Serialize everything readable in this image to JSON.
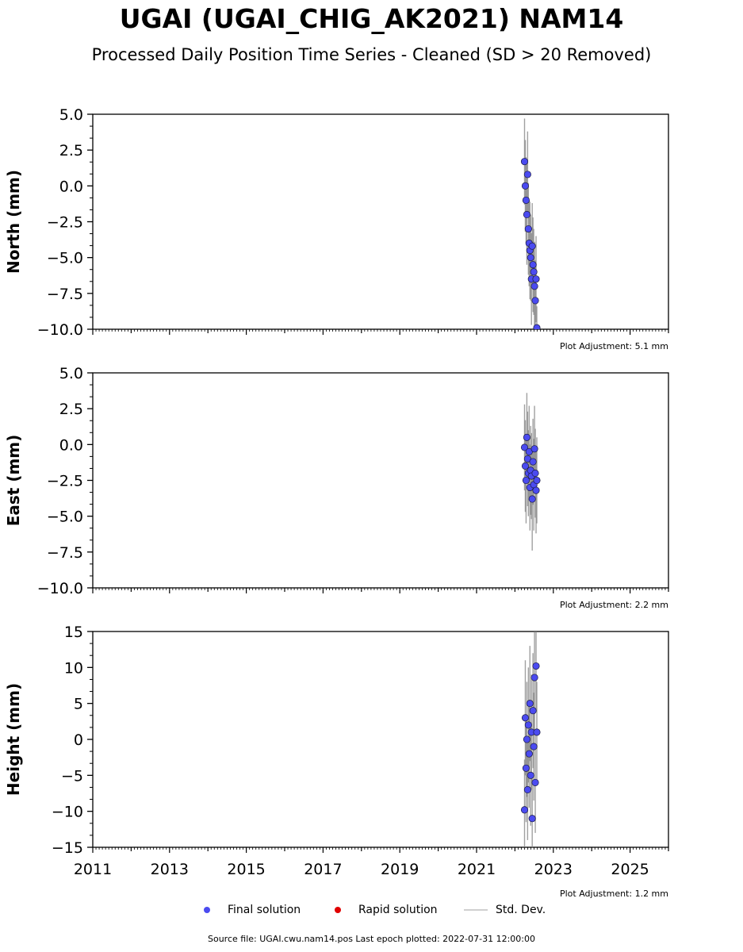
{
  "title": "UGAI (UGAI_CHIG_AK2021) NAM14",
  "subtitle": "Processed Daily Position Time Series - Cleaned (SD > 20 Removed)",
  "legend": {
    "final": "Final solution",
    "rapid": "Rapid solution",
    "std": "Std. Dev."
  },
  "source": "Source file: UGAI.cwu.nam14.pos  Last epoch plotted: 2022-07-31 12:00:00",
  "colors": {
    "final": "#4b4bf0",
    "rapid": "#e00000",
    "std": "#808080"
  },
  "chart_data": [
    {
      "type": "scatter",
      "component": "north",
      "ylabel": "North (mm)",
      "ylim": [
        -10,
        5
      ],
      "yticks": [
        "5.0",
        "2.5",
        "0.0",
        "−2.5",
        "−5.0",
        "−7.5",
        "−10.0"
      ],
      "xlim": [
        2011,
        2026
      ],
      "adjustment": "Plot Adjustment: 5.1 mm",
      "series": [
        {
          "name": "Final solution",
          "x": [
            2022.25,
            2022.27,
            2022.29,
            2022.31,
            2022.33,
            2022.35,
            2022.37,
            2022.39,
            2022.41,
            2022.43,
            2022.45,
            2022.47,
            2022.49,
            2022.51,
            2022.53,
            2022.55,
            2022.57
          ],
          "y": [
            1.7,
            0.0,
            -1.0,
            -2.0,
            0.8,
            -3.0,
            -4.0,
            -4.5,
            -5.0,
            -6.5,
            -4.2,
            -5.5,
            -6.0,
            -7.0,
            -8.0,
            -6.5,
            -9.9
          ],
          "err": [
            3.0,
            3.2,
            3.0,
            3.5,
            3.0,
            3.2,
            3.0,
            3.4,
            3.0,
            3.2,
            3.0,
            3.3,
            3.0,
            3.1,
            2.8,
            3.0,
            1.5
          ]
        }
      ]
    },
    {
      "type": "scatter",
      "component": "east",
      "ylabel": "East (mm)",
      "ylim": [
        -10,
        5
      ],
      "yticks": [
        "5.0",
        "2.5",
        "0.0",
        "−2.5",
        "−5.0",
        "−7.5",
        "−10.0"
      ],
      "xlim": [
        2011,
        2026
      ],
      "adjustment": "Plot Adjustment: 2.2 mm",
      "series": [
        {
          "name": "Final solution",
          "x": [
            2022.25,
            2022.27,
            2022.29,
            2022.31,
            2022.33,
            2022.35,
            2022.37,
            2022.39,
            2022.41,
            2022.43,
            2022.45,
            2022.47,
            2022.49,
            2022.51,
            2022.53,
            2022.55,
            2022.57
          ],
          "y": [
            -0.2,
            -1.5,
            -2.5,
            0.5,
            -1.0,
            -2.0,
            -0.5,
            -3.0,
            -1.8,
            -2.2,
            -3.8,
            -1.2,
            -2.8,
            -0.3,
            -2.0,
            -3.2,
            -2.5
          ],
          "err": [
            3.0,
            3.2,
            3.0,
            3.1,
            3.3,
            3.0,
            3.2,
            3.0,
            3.1,
            3.0,
            3.6,
            3.0,
            3.2,
            3.0,
            3.1,
            3.0,
            3.0
          ]
        }
      ]
    },
    {
      "type": "scatter",
      "component": "height",
      "ylabel": "Height (mm)",
      "ylim": [
        -15,
        15
      ],
      "yticks": [
        "15",
        "10",
        "5",
        "0",
        "−5",
        "−10",
        "−15"
      ],
      "xlim": [
        2011,
        2026
      ],
      "xticks": [
        "2011",
        "2013",
        "2015",
        "2017",
        "2019",
        "2021",
        "2023",
        "2025"
      ],
      "adjustment": "Plot Adjustment: 1.2 mm",
      "series": [
        {
          "name": "Final solution",
          "x": [
            2022.25,
            2022.27,
            2022.29,
            2022.31,
            2022.33,
            2022.35,
            2022.37,
            2022.39,
            2022.41,
            2022.43,
            2022.45,
            2022.47,
            2022.49,
            2022.51,
            2022.53,
            2022.55,
            2022.57
          ],
          "y": [
            -9.8,
            3.0,
            -4.0,
            0.0,
            -7.0,
            2.0,
            -2.0,
            5.0,
            -5.0,
            1.0,
            -11.0,
            4.0,
            -1.0,
            8.6,
            -6.0,
            10.2,
            1.0
          ],
          "err": [
            7.0,
            8.0,
            7.5,
            8.0,
            7.0,
            8.0,
            7.5,
            8.0,
            7.0,
            8.0,
            6.0,
            8.0,
            7.5,
            8.0,
            7.0,
            6.0,
            7.0
          ]
        }
      ]
    }
  ]
}
